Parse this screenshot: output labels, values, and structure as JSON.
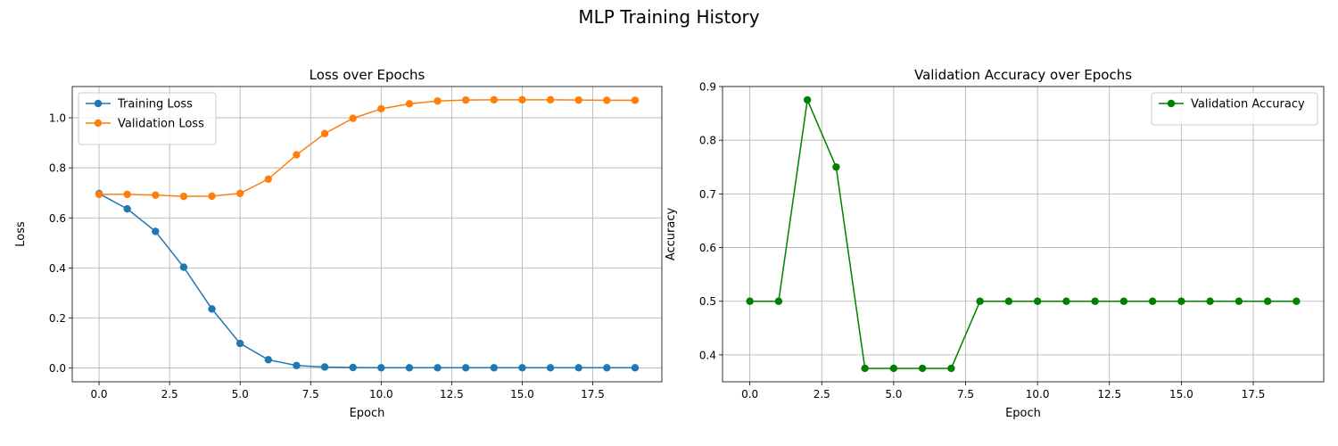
{
  "figure": {
    "title": "MLP Training History"
  },
  "chart_data": [
    {
      "type": "line",
      "title": "Loss over Epochs",
      "xlabel": "Epoch",
      "ylabel": "Loss",
      "xlim": [
        -0.95,
        19.95
      ],
      "ylim": [
        -0.055,
        1.125
      ],
      "xticks": [
        0.0,
        2.5,
        5.0,
        7.5,
        10.0,
        12.5,
        15.0,
        17.5
      ],
      "xtick_labels": [
        "0.0",
        "2.5",
        "5.0",
        "7.5",
        "10.0",
        "12.5",
        "15.0",
        "17.5"
      ],
      "yticks": [
        0.0,
        0.2,
        0.4,
        0.6,
        0.8,
        1.0
      ],
      "ytick_labels": [
        "0.0",
        "0.2",
        "0.4",
        "0.6",
        "0.8",
        "1.0"
      ],
      "grid": true,
      "legend": "upper-left",
      "x": [
        0,
        1,
        2,
        3,
        4,
        5,
        6,
        7,
        8,
        9,
        10,
        11,
        12,
        13,
        14,
        15,
        16,
        17,
        18,
        19
      ],
      "series": [
        {
          "name": "Training Loss",
          "color": "#1f77b4",
          "values": [
            0.697,
            0.636,
            0.546,
            0.403,
            0.236,
            0.098,
            0.033,
            0.01,
            0.004,
            0.002,
            0.001,
            0.001,
            0.001,
            0.001,
            0.001,
            0.001,
            0.001,
            0.001,
            0.001,
            0.001
          ]
        },
        {
          "name": "Validation Loss",
          "color": "#ff7f0e",
          "values": [
            0.694,
            0.694,
            0.691,
            0.686,
            0.687,
            0.698,
            0.755,
            0.852,
            0.937,
            0.998,
            1.036,
            1.056,
            1.067,
            1.071,
            1.072,
            1.072,
            1.072,
            1.071,
            1.07,
            1.07
          ]
        }
      ]
    },
    {
      "type": "line",
      "title": "Validation Accuracy over Epochs",
      "xlabel": "Epoch",
      "ylabel": "Accuracy",
      "xlim": [
        -0.95,
        19.95
      ],
      "ylim": [
        0.35,
        0.9
      ],
      "xticks": [
        0.0,
        2.5,
        5.0,
        7.5,
        10.0,
        12.5,
        15.0,
        17.5
      ],
      "xtick_labels": [
        "0.0",
        "2.5",
        "5.0",
        "7.5",
        "10.0",
        "12.5",
        "15.0",
        "17.5"
      ],
      "yticks": [
        0.4,
        0.5,
        0.6,
        0.7,
        0.8,
        0.9
      ],
      "ytick_labels": [
        "0.4",
        "0.5",
        "0.6",
        "0.7",
        "0.8",
        "0.9"
      ],
      "grid": true,
      "legend": "upper-right",
      "x": [
        0,
        1,
        2,
        3,
        4,
        5,
        6,
        7,
        8,
        9,
        10,
        11,
        12,
        13,
        14,
        15,
        16,
        17,
        18,
        19
      ],
      "series": [
        {
          "name": "Validation Accuracy",
          "color": "#008000",
          "values": [
            0.5,
            0.5,
            0.875,
            0.75,
            0.375,
            0.375,
            0.375,
            0.375,
            0.5,
            0.5,
            0.5,
            0.5,
            0.5,
            0.5,
            0.5,
            0.5,
            0.5,
            0.5,
            0.5,
            0.5
          ]
        }
      ]
    }
  ]
}
